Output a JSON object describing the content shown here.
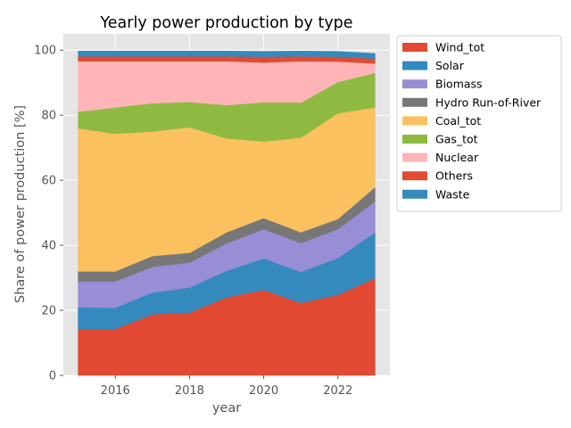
{
  "chart_data": {
    "type": "area",
    "stacked": true,
    "title": "Yearly power production by type",
    "xlabel": "year",
    "ylabel": "Share of power production [%]",
    "x": [
      2015,
      2016,
      2017,
      2018,
      2019,
      2020,
      2021,
      2022,
      2023
    ],
    "xlim": [
      2014.6,
      2023.4
    ],
    "ylim": [
      0,
      105
    ],
    "xticks": [
      2016,
      2018,
      2020,
      2022
    ],
    "yticks": [
      0,
      20,
      40,
      60,
      80,
      100
    ],
    "grid": true,
    "legend_position": "outside-right-top",
    "series": [
      {
        "name": "Wind_tot",
        "color": "#E24A33",
        "values": [
          14.3,
          14.3,
          18.8,
          19.3,
          24.0,
          26.3,
          22.3,
          24.8,
          29.9
        ]
      },
      {
        "name": "Solar",
        "color": "#348ABD",
        "values": [
          6.6,
          6.5,
          6.7,
          7.7,
          8.2,
          9.7,
          9.5,
          11.3,
          14.1
        ]
      },
      {
        "name": "Biomass",
        "color": "#988ED5",
        "values": [
          8.0,
          8.1,
          7.9,
          7.7,
          8.4,
          9.0,
          8.9,
          8.9,
          9.5
        ]
      },
      {
        "name": "Hydro Run-of-River",
        "color": "#777777",
        "values": [
          3.1,
          3.1,
          3.3,
          3.0,
          3.4,
          3.4,
          3.3,
          3.1,
          4.4
        ]
      },
      {
        "name": "Coal_tot",
        "color": "#FBC15E",
        "values": [
          44.0,
          42.3,
          38.3,
          38.6,
          28.9,
          23.5,
          29.1,
          32.5,
          24.5
        ]
      },
      {
        "name": "Gas_tot",
        "color": "#8EBA42",
        "values": [
          5.1,
          8.1,
          8.7,
          7.8,
          10.2,
          12.1,
          10.8,
          9.6,
          10.6
        ]
      },
      {
        "name": "Nuclear",
        "color": "#FFB5B8",
        "values": [
          15.5,
          14.2,
          12.9,
          12.5,
          13.5,
          12.2,
          12.7,
          6.3,
          2.9
        ]
      },
      {
        "name": "Others",
        "color": "#E24A33",
        "values": [
          1.5,
          1.5,
          1.5,
          1.5,
          1.5,
          1.8,
          1.5,
          1.5,
          1.5
        ]
      },
      {
        "name": "Waste",
        "color": "#348ABD",
        "values": [
          1.6,
          1.6,
          1.6,
          1.6,
          1.6,
          1.6,
          1.6,
          1.6,
          1.6
        ]
      }
    ]
  }
}
